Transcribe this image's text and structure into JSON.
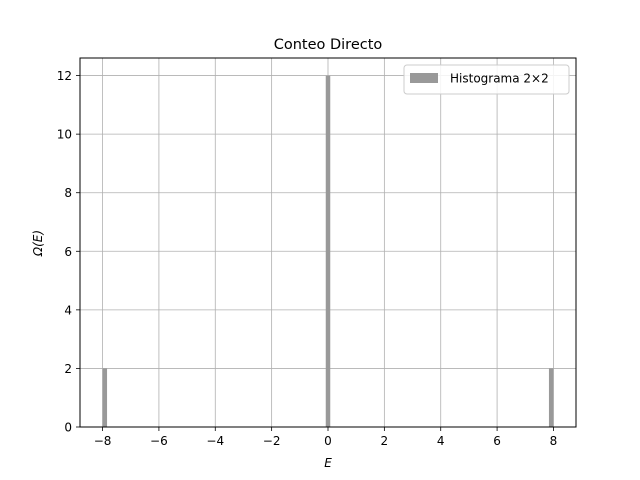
{
  "chart_data": {
    "type": "bar",
    "title": "Conteo Directo",
    "xlabel": "E",
    "ylabel": "Ω(E)",
    "xlim": [
      -8.8,
      8.8
    ],
    "ylim": [
      0,
      12.6
    ],
    "xticks": [
      -8,
      -6,
      -4,
      -2,
      0,
      2,
      4,
      6,
      8
    ],
    "xtick_labels": [
      "−8",
      "−6",
      "−4",
      "−2",
      "0",
      "2",
      "4",
      "6",
      "8"
    ],
    "yticks": [
      0,
      2,
      4,
      6,
      8,
      10,
      12
    ],
    "ytick_labels": [
      "0",
      "2",
      "4",
      "6",
      "8",
      "10",
      "12"
    ],
    "grid": true,
    "legend_position": "top-right",
    "series": [
      {
        "name": "Histograma 2×2",
        "color": "#999999",
        "bins": [
          {
            "x_start": -8.0,
            "x_end": -7.84,
            "count": 2
          },
          {
            "x_start": -0.08,
            "x_end": 0.08,
            "count": 12
          },
          {
            "x_start": 7.84,
            "x_end": 8.0,
            "count": 2
          }
        ]
      }
    ]
  }
}
